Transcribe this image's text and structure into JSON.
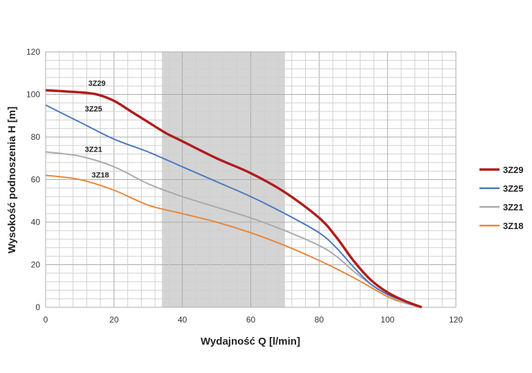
{
  "chart_data": {
    "type": "line",
    "xlabel": "Wydajność Q [l/min]",
    "ylabel": "Wysokość podnoszenia H [m]",
    "xlim": [
      0,
      120
    ],
    "ylim": [
      0,
      120
    ],
    "xticks": [
      "0",
      "20",
      "40",
      "60",
      "80",
      "100",
      "120"
    ],
    "yticks": [
      "0",
      "20",
      "40",
      "60",
      "80",
      "100",
      "120"
    ],
    "grid": true,
    "shaded_range": [
      34,
      70
    ],
    "legend_position": "right",
    "series": [
      {
        "name": "3Z29",
        "color": "#b01c1c",
        "label_at": [
          15,
          104
        ],
        "x": [
          0,
          10,
          15,
          20,
          25,
          30,
          35,
          40,
          50,
          60,
          70,
          80,
          85,
          90,
          95,
          100,
          105,
          110
        ],
        "y": [
          102,
          101,
          100,
          97,
          92,
          87,
          82,
          78,
          70,
          63,
          54,
          42,
          33,
          22,
          13,
          7,
          3,
          0
        ]
      },
      {
        "name": "3Z25",
        "color": "#4a78c0",
        "label_at": [
          14,
          92
        ],
        "x": [
          0,
          10,
          20,
          30,
          40,
          50,
          60,
          70,
          80,
          85,
          90,
          95,
          100,
          105,
          110
        ],
        "y": [
          95,
          87,
          79,
          73,
          66,
          59,
          52,
          44,
          35,
          28,
          19,
          11,
          6,
          3,
          0
        ]
      },
      {
        "name": "3Z21",
        "color": "#aaaaaa",
        "label_at": [
          14,
          73
        ],
        "x": [
          0,
          10,
          20,
          30,
          40,
          50,
          60,
          70,
          80,
          85,
          90,
          95,
          100,
          105,
          110
        ],
        "y": [
          73,
          71,
          66,
          58,
          52,
          47,
          42,
          36,
          29,
          24,
          17,
          11,
          6,
          2,
          0
        ]
      },
      {
        "name": "3Z18",
        "color": "#e8863a",
        "label_at": [
          16,
          61
        ],
        "x": [
          0,
          10,
          20,
          30,
          40,
          50,
          60,
          70,
          80,
          90,
          100,
          105,
          110
        ],
        "y": [
          62,
          60,
          55,
          48,
          44,
          40,
          35,
          29,
          22,
          14,
          5,
          2,
          0
        ]
      }
    ]
  }
}
